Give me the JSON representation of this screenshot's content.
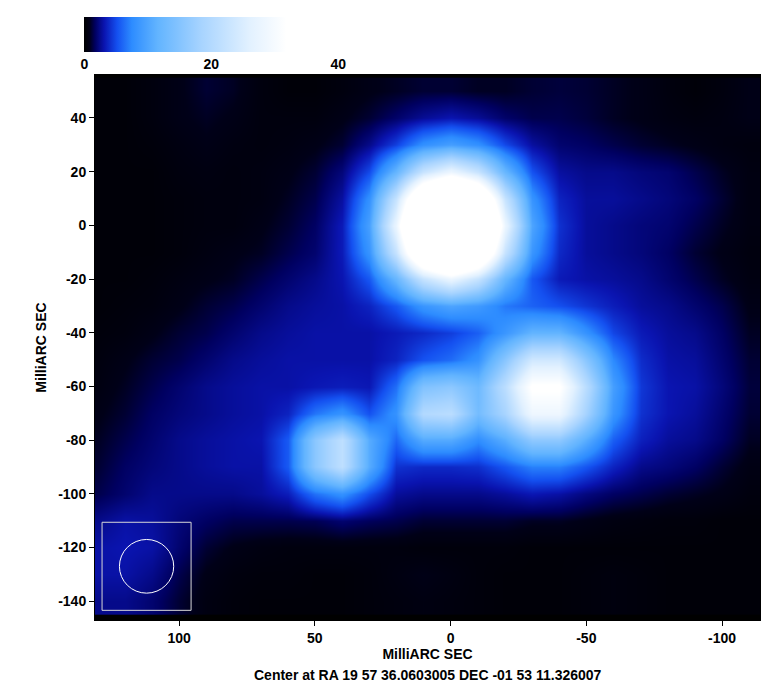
{
  "chart_data": {
    "type": "heatmap",
    "xlabel": "MilliARC SEC",
    "ylabel": "MilliARC SEC",
    "caption": "Center at RA 19 57 36.0603005 DEC -01 53 11.326007",
    "grid": false,
    "xlim": [
      131,
      -114
    ],
    "ylim": [
      -147,
      56
    ],
    "xticks": [
      100,
      50,
      0,
      -50,
      -100
    ],
    "yticks": [
      40,
      20,
      0,
      -20,
      -40,
      -60,
      -80,
      -100,
      -120,
      -140
    ],
    "colorbar": {
      "range": [
        0,
        58
      ],
      "ticks": [
        0,
        20,
        40
      ]
    },
    "beam": {
      "x": 112,
      "y": -127,
      "width": 20,
      "height": 20
    },
    "x": [
      130,
      120,
      110,
      100,
      90,
      80,
      70,
      60,
      50,
      40,
      30,
      20,
      10,
      0,
      -10,
      -20,
      -30,
      -40,
      -50,
      -60,
      -70,
      -80,
      -90,
      -100,
      -110
    ],
    "y": [
      50,
      40,
      30,
      20,
      10,
      0,
      -10,
      -20,
      -30,
      -40,
      -50,
      -60,
      -70,
      -80,
      -90,
      -100,
      -110,
      -120,
      -130,
      -140
    ],
    "z": [
      [
        0.3,
        0.3,
        0.5,
        0.8,
        1.2,
        1.0,
        0.5,
        0.3,
        0.3,
        0.5,
        0.8,
        1.0,
        1.2,
        1.2,
        1.0,
        1.0,
        1.2,
        1.3,
        1.2,
        1.0,
        0.8,
        0.5,
        0.3,
        0.5,
        0.8
      ],
      [
        0.3,
        0.3,
        0.5,
        0.8,
        1.0,
        0.8,
        0.5,
        0.5,
        0.5,
        0.8,
        1.2,
        1.9,
        2.7,
        3.2,
        2.7,
        1.9,
        1.5,
        1.5,
        1.3,
        1.0,
        0.8,
        0.6,
        0.5,
        0.6,
        0.8
      ],
      [
        0.3,
        0.3,
        0.4,
        0.6,
        0.8,
        0.6,
        0.5,
        0.6,
        0.8,
        1.2,
        2.5,
        4.7,
        8.0,
        9.5,
        8.0,
        5.0,
        2.9,
        2.0,
        1.8,
        1.5,
        1.2,
        1.0,
        0.8,
        0.6,
        0.5
      ],
      [
        0.3,
        0.3,
        0.3,
        0.5,
        0.6,
        0.5,
        0.6,
        0.8,
        1.2,
        2.2,
        5.0,
        11.9,
        22.5,
        28,
        22.5,
        12.1,
        5.3,
        2.9,
        2.5,
        2.5,
        2.2,
        2.0,
        1.5,
        1.0,
        0.6
      ],
      [
        0.3,
        0.3,
        0.3,
        0.4,
        0.5,
        0.5,
        0.6,
        1.0,
        1.5,
        2.9,
        8.0,
        22.5,
        45,
        57,
        45,
        22.5,
        8.3,
        3.7,
        2.8,
        2.8,
        2.5,
        2.2,
        1.8,
        1.2,
        0.6
      ],
      [
        0.3,
        0.3,
        0.3,
        0.4,
        0.5,
        0.5,
        0.8,
        1.2,
        1.8,
        3.4,
        9.5,
        28,
        57,
        73,
        57,
        28,
        10,
        4.2,
        2.8,
        2.5,
        2.2,
        2.0,
        1.5,
        1.0,
        0.6
      ],
      [
        0.3,
        0.3,
        0.3,
        0.4,
        0.6,
        0.8,
        1.0,
        1.5,
        2.0,
        3.4,
        8.3,
        22.5,
        45,
        57,
        45,
        22.5,
        8.5,
        3.9,
        2.8,
        2.5,
        2.2,
        1.8,
        1.2,
        0.8,
        0.5
      ],
      [
        0.3,
        0.3,
        0.4,
        0.6,
        0.8,
        1.0,
        1.5,
        2.0,
        2.5,
        3.2,
        5.5,
        12.1,
        22.5,
        28,
        22.5,
        12.1,
        5.5,
        3.4,
        3.0,
        2.8,
        2.5,
        2.0,
        1.5,
        1.0,
        0.6
      ],
      [
        0.3,
        0.4,
        0.5,
        0.8,
        1.2,
        1.5,
        2.0,
        2.5,
        2.8,
        3.0,
        3.7,
        5.5,
        8.5,
        10,
        9.0,
        6.8,
        5.9,
        5.2,
        4.3,
        3.5,
        2.8,
        2.5,
        2.0,
        1.5,
        0.8
      ],
      [
        0.4,
        0.5,
        0.8,
        1.2,
        1.5,
        2.0,
        2.5,
        2.8,
        3.0,
        3.0,
        3.0,
        3.4,
        3.9,
        4.6,
        5.8,
        8.6,
        11.7,
        11.7,
        8.2,
        4.9,
        3.4,
        2.8,
        2.5,
        1.8,
        1.0
      ],
      [
        0.5,
        0.8,
        1.2,
        1.5,
        2.0,
        2.5,
        2.8,
        3.0,
        3.0,
        3.0,
        3.0,
        3.7,
        5.3,
        6.3,
        8.2,
        15.5,
        23.8,
        23.8,
        15.5,
        7.5,
        4.0,
        3.0,
        2.8,
        2.0,
        1.2
      ],
      [
        0.6,
        1.0,
        1.5,
        2.0,
        2.5,
        2.8,
        3.0,
        3.0,
        3.3,
        3.5,
        3.3,
        6.4,
        14.7,
        15.9,
        12.8,
        21.1,
        32.7,
        32.7,
        20.8,
        9.4,
        4.4,
        3.2,
        3.0,
        2.2,
        1.3
      ],
      [
        0.8,
        1.2,
        1.8,
        2.2,
        2.5,
        2.8,
        3.0,
        3.7,
        6.7,
        8.3,
        5.3,
        8.2,
        19.9,
        20.9,
        13.4,
        18.7,
        28.5,
        28.5,
        18.3,
        8.5,
        4.2,
        3.2,
        2.8,
        2.0,
        1.2
      ],
      [
        1.0,
        1.5,
        2.0,
        2.5,
        2.8,
        3.0,
        3.2,
        5.6,
        15.7,
        21.4,
        10.7,
        6.1,
        10.6,
        10.6,
        7.8,
        10.9,
        16.1,
        16.1,
        10.9,
        5.8,
        3.6,
        2.8,
        2.5,
        1.8,
        1.0
      ],
      [
        1.2,
        1.8,
        2.2,
        2.5,
        2.8,
        3.0,
        3.0,
        5.6,
        15.7,
        21.4,
        10.7,
        4.2,
        3.9,
        3.9,
        4.1,
        5.4,
        7.1,
        7.1,
        5.4,
        3.7,
        2.5,
        2.2,
        1.8,
        1.2,
        0.7
      ],
      [
        1.5,
        2.0,
        2.5,
        2.5,
        2.5,
        2.5,
        2.8,
        3.5,
        6.5,
        8.1,
        5.1,
        2.8,
        2.5,
        2.5,
        2.5,
        2.8,
        3.3,
        3.0,
        2.3,
        1.8,
        1.5,
        1.2,
        1.0,
        0.8,
        0.5
      ],
      [
        2.5,
        3.0,
        2.8,
        2.2,
        1.8,
        1.5,
        1.5,
        1.5,
        1.6,
        2.0,
        1.7,
        1.5,
        1.2,
        1.2,
        1.2,
        1.2,
        1.0,
        1.0,
        0.8,
        0.6,
        0.5,
        0.4,
        0.4,
        0.3,
        0.3
      ],
      [
        3.0,
        3.2,
        3.0,
        2.0,
        1.2,
        0.8,
        0.6,
        0.5,
        0.5,
        0.5,
        0.5,
        0.5,
        0.4,
        0.4,
        0.4,
        0.4,
        0.3,
        0.3,
        0.3,
        0.3,
        0.3,
        0.3,
        0.3,
        0.3,
        0.3
      ],
      [
        3.0,
        3.0,
        2.5,
        1.5,
        0.8,
        0.5,
        0.4,
        0.4,
        0.3,
        0.3,
        0.4,
        0.6,
        0.8,
        0.6,
        0.4,
        0.3,
        0.3,
        0.3,
        0.4,
        0.5,
        0.4,
        0.3,
        0.3,
        0.3,
        0.3
      ],
      [
        2.5,
        2.5,
        2.0,
        1.2,
        0.6,
        0.4,
        0.3,
        0.3,
        0.3,
        0.3,
        0.4,
        0.5,
        0.6,
        0.5,
        0.4,
        0.3,
        0.3,
        0.3,
        0.4,
        0.5,
        0.4,
        0.3,
        0.3,
        0.3,
        0.3
      ]
    ]
  }
}
